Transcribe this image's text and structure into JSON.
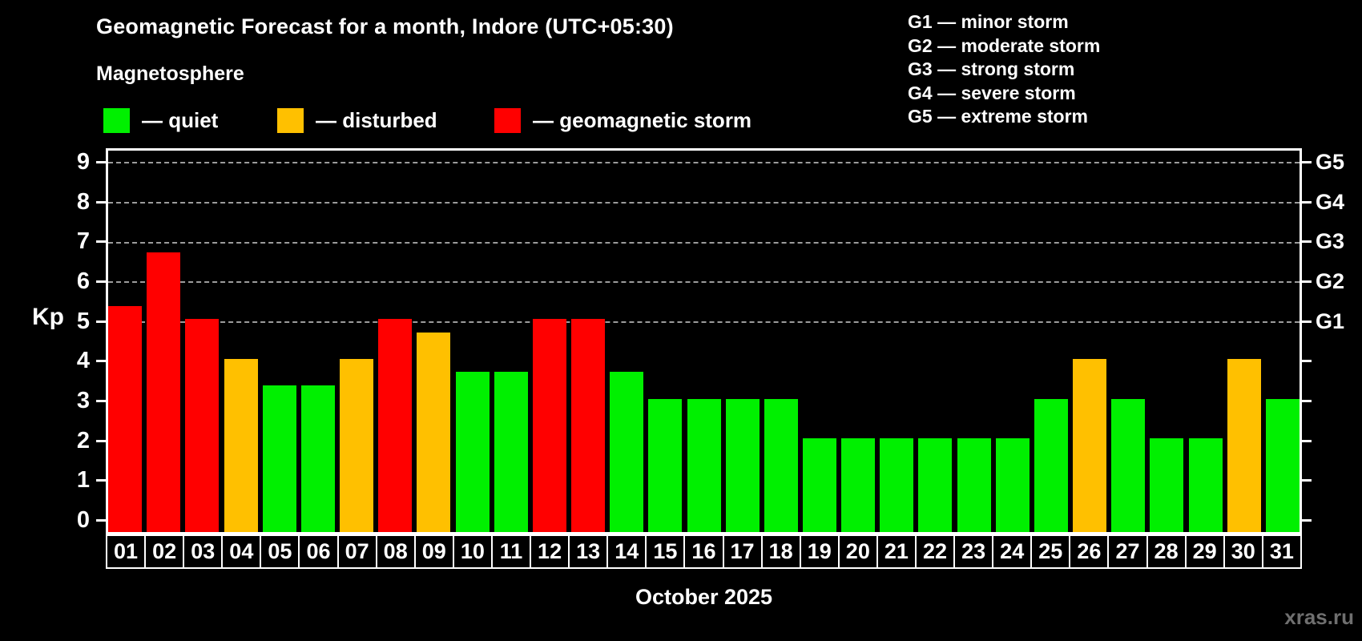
{
  "title": "Geomagnetic Forecast for a month, Indore (UTC+05:30)",
  "subtitle": "Magnetosphere",
  "legend": [
    {
      "key": "quiet",
      "label": "— quiet",
      "color": "#00f000"
    },
    {
      "key": "disturbed",
      "label": "— disturbed",
      "color": "#ffc000"
    },
    {
      "key": "storm",
      "label": "— geomagnetic storm",
      "color": "#ff0000"
    }
  ],
  "g_legend": [
    "G1 — minor storm",
    "G2 — moderate storm",
    "G3 — strong storm",
    "G4 — severe storm",
    "G5 — extreme storm"
  ],
  "x_label": "October 2025",
  "watermark": "xras.ru",
  "chart_data": {
    "type": "bar",
    "title": "Geomagnetic Forecast for a month, Indore (UTC+05:30)",
    "xlabel": "October 2025",
    "ylabel": "Kp",
    "ylim": [
      0,
      9
    ],
    "grid": "horizontal dashed lines at Kp 5-9 (G1-G5)",
    "legend_position": "top-left and top-right",
    "categories": [
      "01",
      "02",
      "03",
      "04",
      "05",
      "06",
      "07",
      "08",
      "09",
      "10",
      "11",
      "12",
      "13",
      "14",
      "15",
      "16",
      "17",
      "18",
      "19",
      "20",
      "21",
      "22",
      "23",
      "24",
      "25",
      "26",
      "27",
      "28",
      "29",
      "30",
      "31"
    ],
    "values": [
      5.33,
      6.67,
      5,
      4,
      3.33,
      3.33,
      4,
      5,
      4.67,
      3.67,
      3.67,
      5,
      5,
      3.67,
      3,
      3,
      3,
      3,
      2,
      2,
      2,
      2,
      2,
      2,
      3,
      4,
      3,
      2,
      2,
      4,
      3
    ],
    "statuses": [
      "storm",
      "storm",
      "storm",
      "disturbed",
      "quiet",
      "quiet",
      "disturbed",
      "storm",
      "disturbed",
      "quiet",
      "quiet",
      "storm",
      "storm",
      "quiet",
      "quiet",
      "quiet",
      "quiet",
      "quiet",
      "quiet",
      "quiet",
      "quiet",
      "quiet",
      "quiet",
      "quiet",
      "quiet",
      "disturbed",
      "quiet",
      "quiet",
      "quiet",
      "disturbed",
      "quiet"
    ],
    "status_colors": {
      "quiet": "#00f000",
      "disturbed": "#ffc000",
      "storm": "#ff0000"
    },
    "y_ticks": [
      0,
      1,
      2,
      3,
      4,
      5,
      6,
      7,
      8,
      9
    ],
    "g_levels": [
      {
        "label": "G1",
        "value": 5
      },
      {
        "label": "G2",
        "value": 6
      },
      {
        "label": "G3",
        "value": 7
      },
      {
        "label": "G4",
        "value": 8
      },
      {
        "label": "G5",
        "value": 9
      }
    ]
  }
}
